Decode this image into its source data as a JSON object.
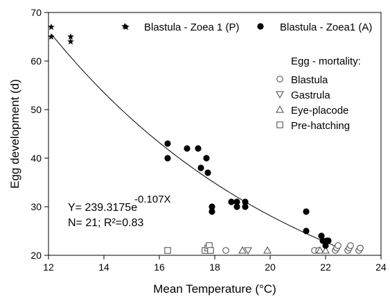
{
  "chart_data": {
    "type": "scatter",
    "xlabel": "Mean Temperature (°C)",
    "ylabel": "Egg development (d)",
    "xlim": [
      12,
      24
    ],
    "ylim": [
      20,
      70
    ],
    "xticks": [
      12,
      14,
      16,
      18,
      20,
      22,
      24
    ],
    "yticks": [
      20,
      30,
      40,
      50,
      60,
      70
    ],
    "grid": false,
    "legend_title": "Egg - mortality:",
    "series": [
      {
        "name": "Blastula - Zoea 1 (P)",
        "marker": "star",
        "points": [
          [
            12.1,
            67
          ],
          [
            12.1,
            65
          ],
          [
            12.8,
            65
          ],
          [
            12.8,
            64
          ],
          [
            14.8,
            67
          ]
        ]
      },
      {
        "name": "Blastula - Zoea1 (A)",
        "marker": "filled-circle",
        "points": [
          [
            16.3,
            43
          ],
          [
            16.3,
            40
          ],
          [
            17.0,
            42
          ],
          [
            17.4,
            42
          ],
          [
            17.5,
            38
          ],
          [
            17.7,
            40
          ],
          [
            17.75,
            37
          ],
          [
            17.9,
            30
          ],
          [
            17.9,
            29
          ],
          [
            18.6,
            31
          ],
          [
            18.8,
            31
          ],
          [
            18.8,
            30
          ],
          [
            19.1,
            31
          ],
          [
            19.1,
            30
          ],
          [
            21.3,
            29
          ],
          [
            21.3,
            25
          ],
          [
            21.85,
            24
          ],
          [
            21.9,
            23
          ],
          [
            22.0,
            22
          ],
          [
            22.05,
            23
          ],
          [
            22.1,
            23
          ]
        ]
      },
      {
        "name": "Blastula",
        "marker": "open-circle",
        "points": [
          [
            18.4,
            21
          ],
          [
            21.6,
            21
          ],
          [
            21.75,
            21
          ],
          [
            22.35,
            21
          ],
          [
            22.4,
            21.5
          ],
          [
            22.45,
            22
          ],
          [
            22.8,
            21
          ],
          [
            22.85,
            21.5
          ],
          [
            22.9,
            22
          ],
          [
            23.2,
            21
          ],
          [
            23.25,
            21.5
          ]
        ]
      },
      {
        "name": "Gastrula",
        "marker": "down-triangle",
        "points": [
          [
            19.2,
            21
          ]
        ]
      },
      {
        "name": "Eye-placode",
        "marker": "up-triangle",
        "points": [
          [
            19.0,
            21
          ],
          [
            19.9,
            21
          ],
          [
            21.8,
            21
          ],
          [
            22.0,
            21
          ]
        ]
      },
      {
        "name": "Pre-hatching",
        "marker": "open-square",
        "points": [
          [
            16.3,
            21
          ],
          [
            17.65,
            21
          ],
          [
            17.75,
            21.5
          ],
          [
            17.8,
            22
          ],
          [
            17.85,
            21
          ]
        ]
      }
    ],
    "fit": {
      "a": 239.3175,
      "b": -0.107,
      "x_range": [
        12.1,
        22.4
      ],
      "equation_base": "Y= 239.3175e",
      "equation_exponent": "-0.107X",
      "stats": "N= 21; R²=0.83"
    }
  }
}
